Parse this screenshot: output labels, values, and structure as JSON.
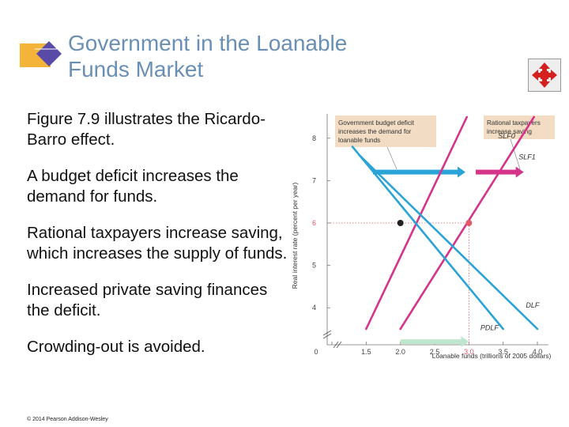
{
  "slide": {
    "title_line1": "Government in the Loanable",
    "title_line2": "Funds Market",
    "bullets": [
      "Figure 7.9 illustrates the Ricardo-Barro effect.",
      "A budget deficit increases the demand for funds.",
      "Rational taxpayers increase saving, which increases the supply of funds.",
      "Increased private saving finances the deficit.",
      "Crowding-out is avoided."
    ],
    "copyright": "© 2014 Pearson Addison-Wesley",
    "nav_icon": "four-way-arrow-icon"
  },
  "colors": {
    "title": "#6a8fb4",
    "supply": "#d6338a",
    "demand": "#2aa3d6",
    "callout": "#f2dcc4",
    "highlight": "#e05a6a",
    "saving_arrow": "#bfe6cf"
  },
  "chart_data": {
    "type": "line",
    "xlabel": "Loanable funds (trillions of 2005 dollars)",
    "ylabel": "Real interest rate (percent per year)",
    "xlim": [
      1.0,
      4.0
    ],
    "ylim": [
      3.5,
      8.5
    ],
    "x_ticks": [
      "0",
      "1.5",
      "2.0",
      "2.5",
      "3.0",
      "3.5",
      "4.0"
    ],
    "x_tick_values": [
      1.0,
      1.5,
      2.0,
      2.5,
      3.0,
      3.5,
      4.0
    ],
    "y_ticks": [
      "4",
      "5",
      "6",
      "7",
      "8"
    ],
    "y_tick_values": [
      4,
      5,
      6,
      7,
      8
    ],
    "highlight_x": 3.0,
    "highlight_y": 6,
    "series": [
      {
        "name": "SLF0",
        "kind": "supply",
        "points": [
          [
            1.5,
            3.5
          ],
          [
            2.97,
            8.5
          ]
        ]
      },
      {
        "name": "SLF1",
        "kind": "supply",
        "points": [
          [
            2.0,
            3.5
          ],
          [
            3.95,
            8.5
          ]
        ]
      },
      {
        "name": "DLF",
        "kind": "demand",
        "points": [
          [
            1.4,
            7.6
          ],
          [
            4.0,
            3.5
          ]
        ]
      },
      {
        "name": "PDLF",
        "kind": "demand",
        "points": [
          [
            1.3,
            7.8
          ],
          [
            3.5,
            3.5
          ]
        ]
      }
    ],
    "labels": [
      {
        "text": "SLF0",
        "x": 3.55,
        "y": 8.0
      },
      {
        "text": "SLF1",
        "x": 3.85,
        "y": 7.5
      },
      {
        "text": "DLF",
        "x": 3.93,
        "y": 4.0
      },
      {
        "text": "PDLF",
        "x": 3.3,
        "y": 3.47
      }
    ],
    "equilibria": [
      {
        "x": 2.0,
        "y": 6.0
      },
      {
        "x": 3.0,
        "y": 6.0
      }
    ],
    "arrows": [
      {
        "kind": "demand-shift",
        "x_from": 1.6,
        "x_to": 2.95,
        "y": 7.2
      },
      {
        "kind": "supply-shift",
        "x_from": 3.1,
        "x_to": 3.8,
        "y": 7.2
      },
      {
        "kind": "saving",
        "x_from": 2.0,
        "x_to": 3.0,
        "y": 3.2
      }
    ],
    "annotations": [
      {
        "text": "Government budget deficit increases the demand for loanable funds"
      },
      {
        "text": "Rational taxpayers increase saving"
      }
    ]
  }
}
